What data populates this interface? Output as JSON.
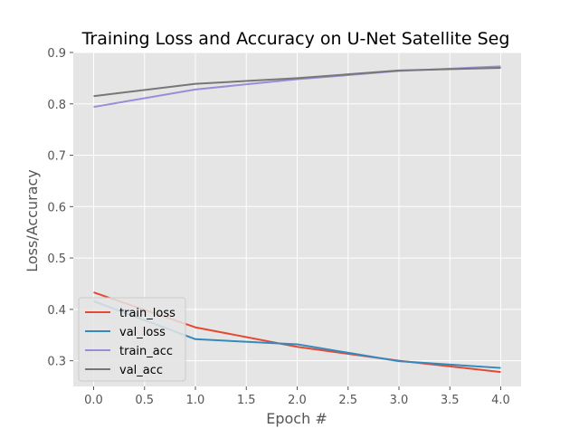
{
  "chart_data": {
    "type": "line",
    "title": "Training Loss and Accuracy on U-Net Satellite Seg",
    "xlabel": "Epoch #",
    "ylabel": "Loss/Accuracy",
    "x": [
      0,
      1,
      2,
      3,
      4
    ],
    "xlim": [
      -0.2,
      4.2
    ],
    "ylim": [
      0.25,
      0.9
    ],
    "xticks": [
      0.0,
      0.5,
      1.0,
      1.5,
      2.0,
      2.5,
      3.0,
      3.5,
      4.0
    ],
    "xtick_labels": [
      "0.0",
      "0.5",
      "1.0",
      "1.5",
      "2.0",
      "2.5",
      "3.0",
      "3.5",
      "4.0"
    ],
    "yticks": [
      0.3,
      0.4,
      0.5,
      0.6,
      0.7,
      0.8,
      0.9
    ],
    "ytick_labels": [
      "0.3",
      "0.4",
      "0.5",
      "0.6",
      "0.7",
      "0.8",
      "0.9"
    ],
    "grid": true,
    "legend_position": "lower-left",
    "colors": {
      "background": "#e5e5e5",
      "grid": "#ffffff"
    },
    "series": [
      {
        "name": "train_loss",
        "color": "#e24a33",
        "values": [
          0.433,
          0.365,
          0.327,
          0.3,
          0.278
        ]
      },
      {
        "name": "val_loss",
        "color": "#348abd",
        "values": [
          0.416,
          0.342,
          0.332,
          0.299,
          0.286
        ]
      },
      {
        "name": "train_acc",
        "color": "#988ed5",
        "values": [
          0.794,
          0.828,
          0.848,
          0.864,
          0.873
        ]
      },
      {
        "name": "val_acc",
        "color": "#777777",
        "values": [
          0.815,
          0.839,
          0.85,
          0.865,
          0.87
        ]
      }
    ]
  }
}
